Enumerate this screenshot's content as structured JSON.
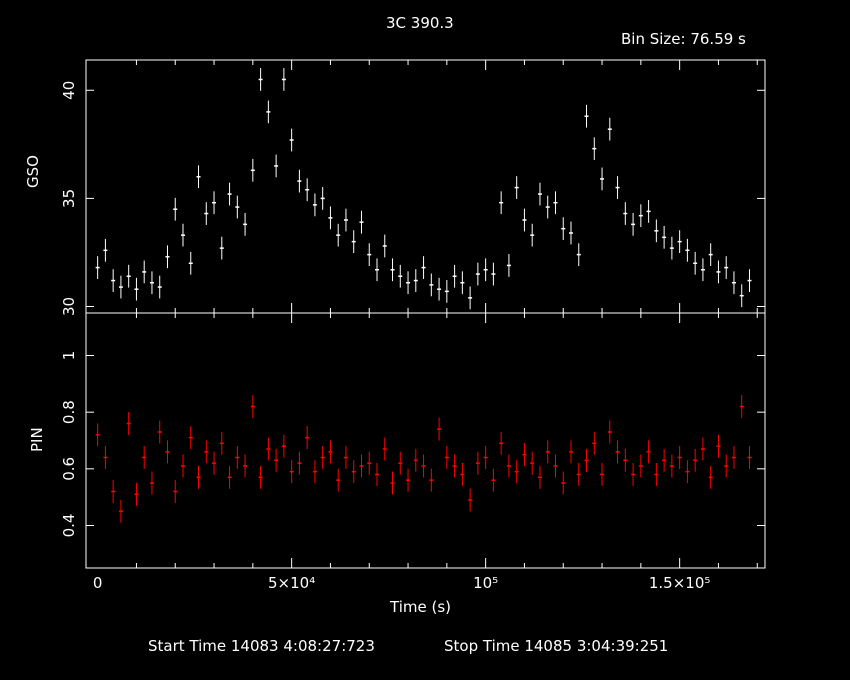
{
  "title": "3C 390.3",
  "bin_size_label": "Bin Size:  76.59  s",
  "xlabel": "Time (s)",
  "footer": {
    "start": "Start Time 14083   4:08:27:723",
    "stop": "Stop Time 14085   3:04:39:251"
  },
  "colors": {
    "background": "#000000",
    "frame": "#ffffff",
    "gso": "#ffffff",
    "pin": "#ff0000"
  },
  "chart_data": [
    {
      "type": "scatter",
      "panel": "top",
      "ylabel": "GSO",
      "xlim": [
        -3000,
        172000
      ],
      "ylim": [
        29.7,
        41.4
      ],
      "yticks": [
        30,
        35,
        40
      ],
      "error_bars": true,
      "series": [
        {
          "color": "#ffffff",
          "x": [
            0,
            2000,
            4000,
            6000,
            8000,
            10000,
            12000,
            14000,
            16000,
            18000,
            20000,
            22000,
            24000,
            26000,
            28000,
            30000,
            32000,
            34000,
            36000,
            38000,
            40000,
            42000,
            44000,
            46000,
            48000,
            50000,
            52000,
            54000,
            56000,
            58000,
            60000,
            62000,
            64000,
            66000,
            68000,
            70000,
            72000,
            74000,
            76000,
            78000,
            80000,
            82000,
            84000,
            86000,
            88000,
            90000,
            92000,
            94000,
            96000,
            98000,
            100000,
            102000,
            104000,
            106000,
            108000,
            110000,
            112000,
            114000,
            116000,
            118000,
            120000,
            122000,
            124000,
            126000,
            128000,
            130000,
            132000,
            134000,
            136000,
            138000,
            140000,
            142000,
            144000,
            146000,
            148000,
            150000,
            152000,
            154000,
            156000,
            158000,
            160000,
            162000,
            164000,
            166000,
            168000
          ],
          "y": [
            31.8,
            32.6,
            31.2,
            30.9,
            31.4,
            30.8,
            31.6,
            31.1,
            30.9,
            32.3,
            34.5,
            33.3,
            32.0,
            36.0,
            34.3,
            34.8,
            32.7,
            35.2,
            34.6,
            33.8,
            36.3,
            40.5,
            39.0,
            36.5,
            40.5,
            37.7,
            35.8,
            35.4,
            34.7,
            35.0,
            34.1,
            33.3,
            34.0,
            33.0,
            33.9,
            32.4,
            31.7,
            32.8,
            31.7,
            31.4,
            31.1,
            31.2,
            31.8,
            31.0,
            30.8,
            30.7,
            31.4,
            31.1,
            30.4,
            31.5,
            31.7,
            31.5,
            34.8,
            31.9,
            35.5,
            34.0,
            33.3,
            35.2,
            34.6,
            34.8,
            33.6,
            33.4,
            32.4,
            38.8,
            37.3,
            35.9,
            38.2,
            35.5,
            34.3,
            33.8,
            34.2,
            34.4,
            33.5,
            33.2,
            32.7,
            33.0,
            32.6,
            32.0,
            31.7,
            32.4,
            31.6,
            31.8,
            31.1,
            30.5,
            31.2
          ]
        }
      ]
    },
    {
      "type": "scatter",
      "panel": "bottom",
      "ylabel": "PIN",
      "xlim": [
        -3000,
        172000
      ],
      "ylim": [
        0.25,
        1.15
      ],
      "yticks": [
        0.4,
        0.6,
        0.8,
        1
      ],
      "xticks": [
        0,
        50000,
        100000,
        150000
      ],
      "xtick_labels": [
        "0",
        "5×10⁴",
        "10⁵",
        "1.5×10⁵"
      ],
      "error_bars": true,
      "series": [
        {
          "color": "#ff0000",
          "x": [
            0,
            2000,
            4000,
            6000,
            8000,
            10000,
            12000,
            14000,
            16000,
            18000,
            20000,
            22000,
            24000,
            26000,
            28000,
            30000,
            32000,
            34000,
            36000,
            38000,
            40000,
            42000,
            44000,
            46000,
            48000,
            50000,
            52000,
            54000,
            56000,
            58000,
            60000,
            62000,
            64000,
            66000,
            68000,
            70000,
            72000,
            74000,
            76000,
            78000,
            80000,
            82000,
            84000,
            86000,
            88000,
            90000,
            92000,
            94000,
            96000,
            98000,
            100000,
            102000,
            104000,
            106000,
            108000,
            110000,
            112000,
            114000,
            116000,
            118000,
            120000,
            122000,
            124000,
            126000,
            128000,
            130000,
            132000,
            134000,
            136000,
            138000,
            140000,
            142000,
            144000,
            146000,
            148000,
            150000,
            152000,
            154000,
            156000,
            158000,
            160000,
            162000,
            164000,
            166000,
            168000
          ],
          "y": [
            0.72,
            0.64,
            0.52,
            0.45,
            0.76,
            0.51,
            0.64,
            0.55,
            0.73,
            0.66,
            0.52,
            0.61,
            0.71,
            0.57,
            0.66,
            0.62,
            0.69,
            0.57,
            0.64,
            0.61,
            0.82,
            0.57,
            0.67,
            0.63,
            0.68,
            0.59,
            0.62,
            0.71,
            0.59,
            0.64,
            0.66,
            0.56,
            0.64,
            0.59,
            0.61,
            0.62,
            0.58,
            0.67,
            0.55,
            0.62,
            0.56,
            0.63,
            0.61,
            0.56,
            0.74,
            0.64,
            0.61,
            0.58,
            0.49,
            0.62,
            0.64,
            0.56,
            0.69,
            0.61,
            0.59,
            0.65,
            0.62,
            0.57,
            0.66,
            0.61,
            0.55,
            0.66,
            0.58,
            0.63,
            0.69,
            0.58,
            0.73,
            0.66,
            0.63,
            0.58,
            0.61,
            0.66,
            0.58,
            0.63,
            0.61,
            0.64,
            0.59,
            0.63,
            0.67,
            0.57,
            0.68,
            0.61,
            0.64,
            0.82,
            0.64
          ]
        }
      ]
    }
  ]
}
